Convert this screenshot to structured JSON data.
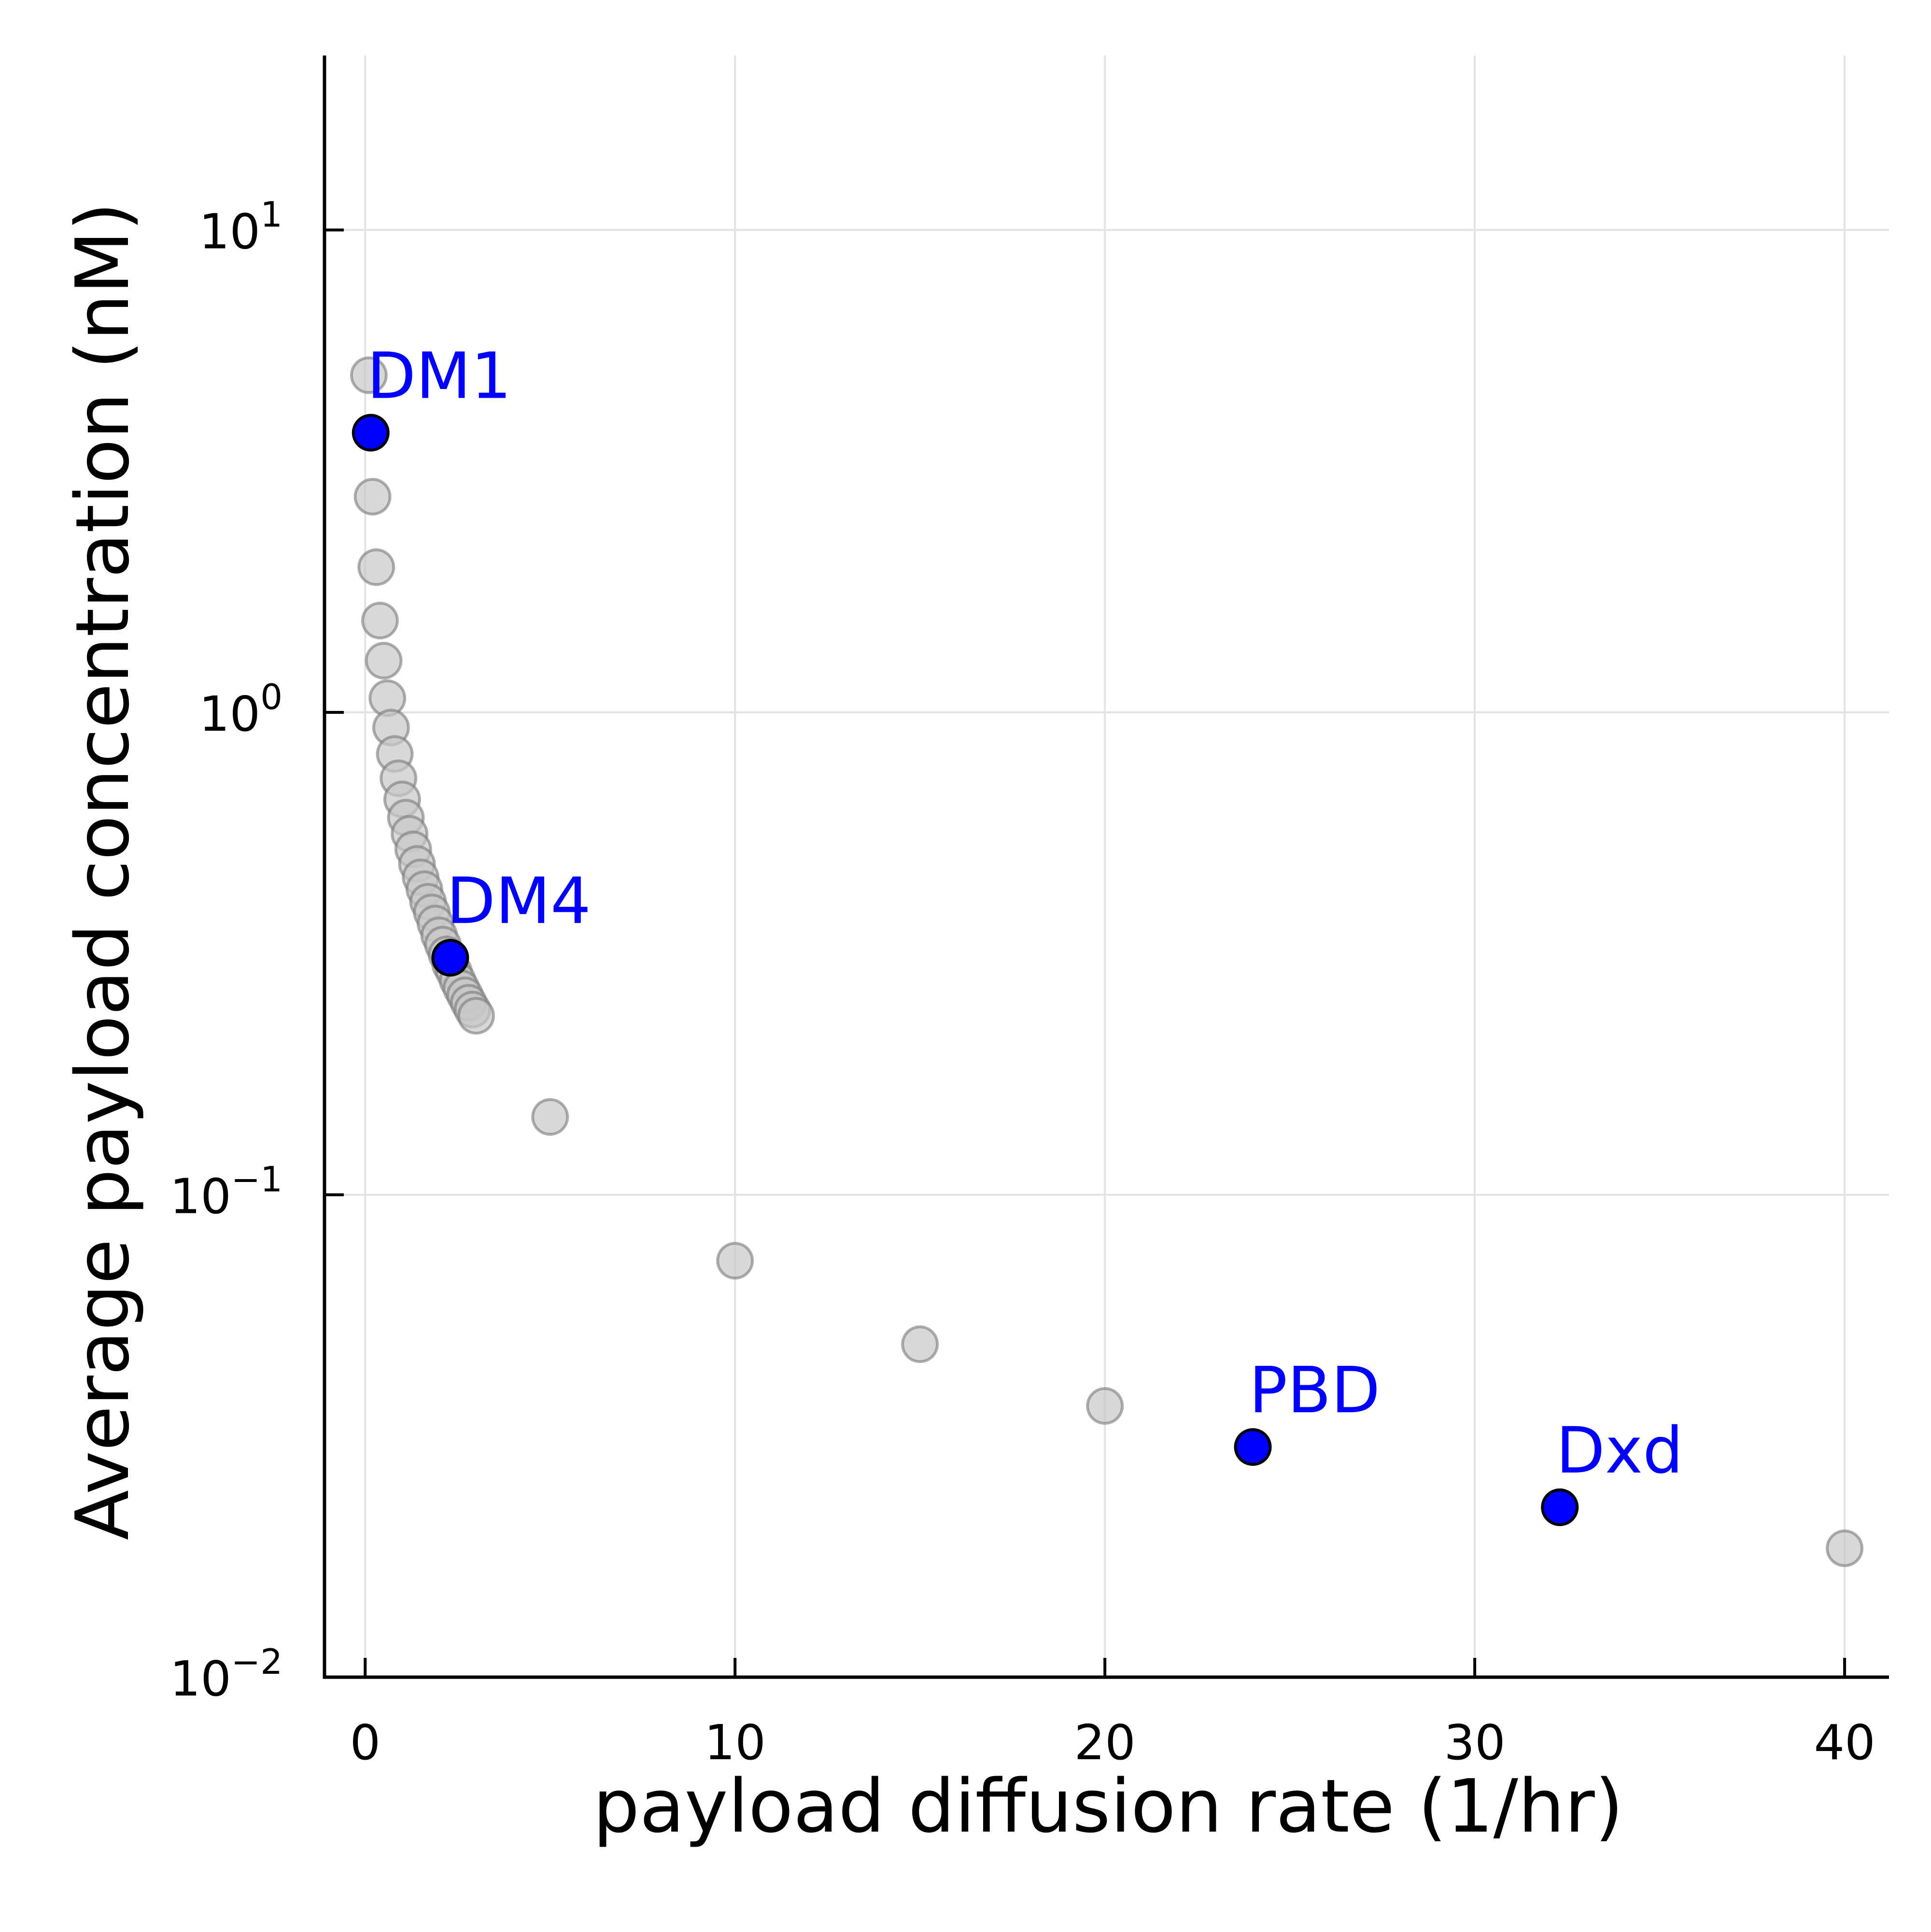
{
  "chart_data": {
    "type": "scatter",
    "title": "",
    "xlabel": "payload diffusion rate (1/hr)",
    "ylabel": "Average payload concentration (nM)",
    "xlim": [
      -1.1,
      41.2
    ],
    "ylim": [
      0.01,
      23
    ],
    "y_scale": "log10",
    "grid": true,
    "legend": "none",
    "x_ticks": [
      {
        "value": 0,
        "label": "0"
      },
      {
        "value": 10,
        "label": "10"
      },
      {
        "value": 20,
        "label": "20"
      },
      {
        "value": 30,
        "label": "30"
      },
      {
        "value": 40,
        "label": "40"
      }
    ],
    "y_ticks": [
      {
        "value": 10,
        "base": "10",
        "exp": "1"
      },
      {
        "value": 1,
        "base": "10",
        "exp": "0"
      },
      {
        "value": 0.1,
        "base": "10",
        "exp": "−1"
      },
      {
        "value": 0.01,
        "base": "10",
        "exp": "−2"
      }
    ],
    "series": [
      {
        "color": "#c8c8c8",
        "edge_color": "#7a7a7a",
        "x": [
          0.1,
          0.2,
          0.3,
          0.4,
          0.5,
          0.6,
          0.7,
          0.8,
          0.9,
          1.0,
          1.1,
          1.2,
          1.3,
          1.4,
          1.5,
          1.6,
          1.7,
          1.8,
          1.9,
          2.0,
          2.1,
          2.2,
          2.3,
          2.4,
          2.5,
          2.6,
          2.7,
          2.8,
          2.9,
          3.0,
          5,
          10,
          15,
          20,
          40
        ],
        "y": [
          5.0,
          2.8,
          2.0,
          1.55,
          1.28,
          1.07,
          0.93,
          0.82,
          0.73,
          0.66,
          0.605,
          0.56,
          0.52,
          0.485,
          0.455,
          0.43,
          0.405,
          0.385,
          0.365,
          0.345,
          0.33,
          0.315,
          0.3,
          0.29,
          0.278,
          0.268,
          0.259,
          0.25,
          0.242,
          0.235,
          0.145,
          0.073,
          0.049,
          0.0365,
          0.0185
        ]
      },
      {
        "color": "#0000ff",
        "edge_color": "#000000",
        "x": [
          0.15,
          2.3,
          24,
          32.3
        ],
        "y": [
          3.8,
          0.31,
          0.03,
          0.0225
        ],
        "labels": [
          "DM1",
          "DM4",
          "PBD",
          "Dxd"
        ]
      }
    ]
  }
}
